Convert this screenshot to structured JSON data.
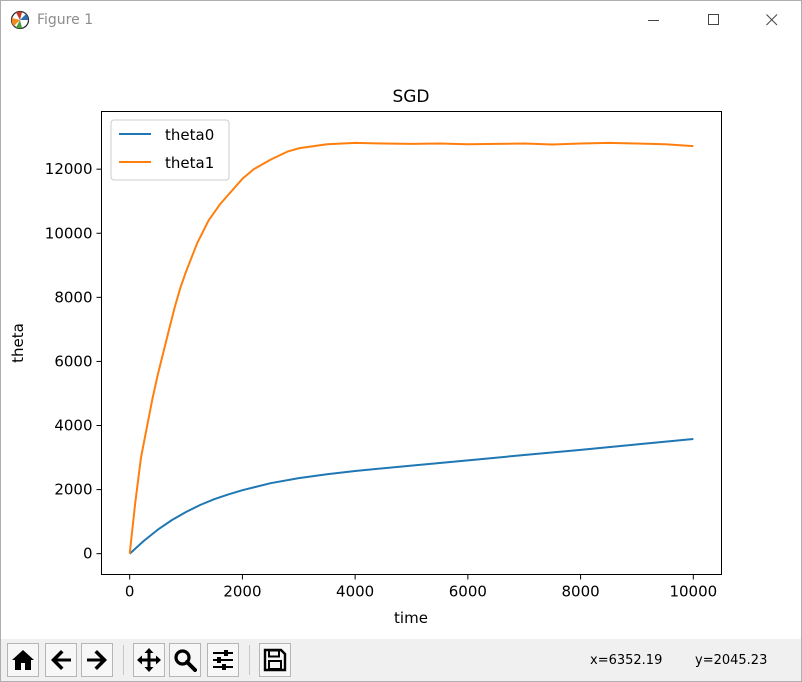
{
  "window": {
    "title": "Figure 1",
    "app_icon": "matplotlib-icon",
    "controls": [
      "minimize-icon",
      "maximize-icon",
      "close-icon"
    ]
  },
  "toolbar": {
    "buttons": [
      "home-icon",
      "back-arrow-icon",
      "forward-arrow-icon",
      "pan-icon",
      "zoom-icon",
      "subplots-config-icon",
      "save-icon"
    ],
    "x_readout": "x=6352.19",
    "y_readout": "y=2045.23"
  },
  "chart_data": {
    "type": "line",
    "title": "SGD",
    "xlabel": "time",
    "ylabel": "theta",
    "xlim": [
      -500,
      10500
    ],
    "ylim": [
      -650,
      13800
    ],
    "x_ticks": [
      0,
      2000,
      4000,
      6000,
      8000,
      10000
    ],
    "x_tick_labels": [
      "0",
      "2000",
      "4000",
      "6000",
      "8000",
      "10000"
    ],
    "y_ticks": [
      0,
      2000,
      4000,
      6000,
      8000,
      10000,
      12000
    ],
    "y_tick_labels": [
      "0",
      "2000",
      "4000",
      "6000",
      "8000",
      "10000",
      "12000"
    ],
    "grid": false,
    "legend_position": "upper-left",
    "series": [
      {
        "name": "theta0",
        "color": "#1f77b4",
        "x": [
          0,
          250,
          500,
          750,
          1000,
          1250,
          1500,
          1750,
          2000,
          2500,
          3000,
          3500,
          4000,
          5000,
          6000,
          7000,
          8000,
          9000,
          10000
        ],
        "y": [
          0,
          400,
          750,
          1050,
          1300,
          1520,
          1700,
          1850,
          1980,
          2200,
          2360,
          2480,
          2580,
          2750,
          2910,
          3080,
          3240,
          3410,
          3580
        ]
      },
      {
        "name": "theta1",
        "color": "#ff7f0e",
        "x": [
          0,
          100,
          200,
          300,
          400,
          500,
          600,
          700,
          800,
          900,
          1000,
          1200,
          1400,
          1600,
          1800,
          2000,
          2200,
          2500,
          2800,
          3000,
          3500,
          4000,
          4500,
          5000,
          5500,
          6000,
          6500,
          7000,
          7500,
          8000,
          8500,
          9000,
          9500,
          10000
        ],
        "y": [
          0,
          1600,
          3000,
          3900,
          4800,
          5600,
          6300,
          7000,
          7700,
          8300,
          8800,
          9700,
          10400,
          10900,
          11300,
          11700,
          12000,
          12300,
          12550,
          12650,
          12780,
          12820,
          12800,
          12790,
          12800,
          12780,
          12790,
          12800,
          12770,
          12800,
          12820,
          12800,
          12780,
          12720
        ]
      }
    ]
  }
}
